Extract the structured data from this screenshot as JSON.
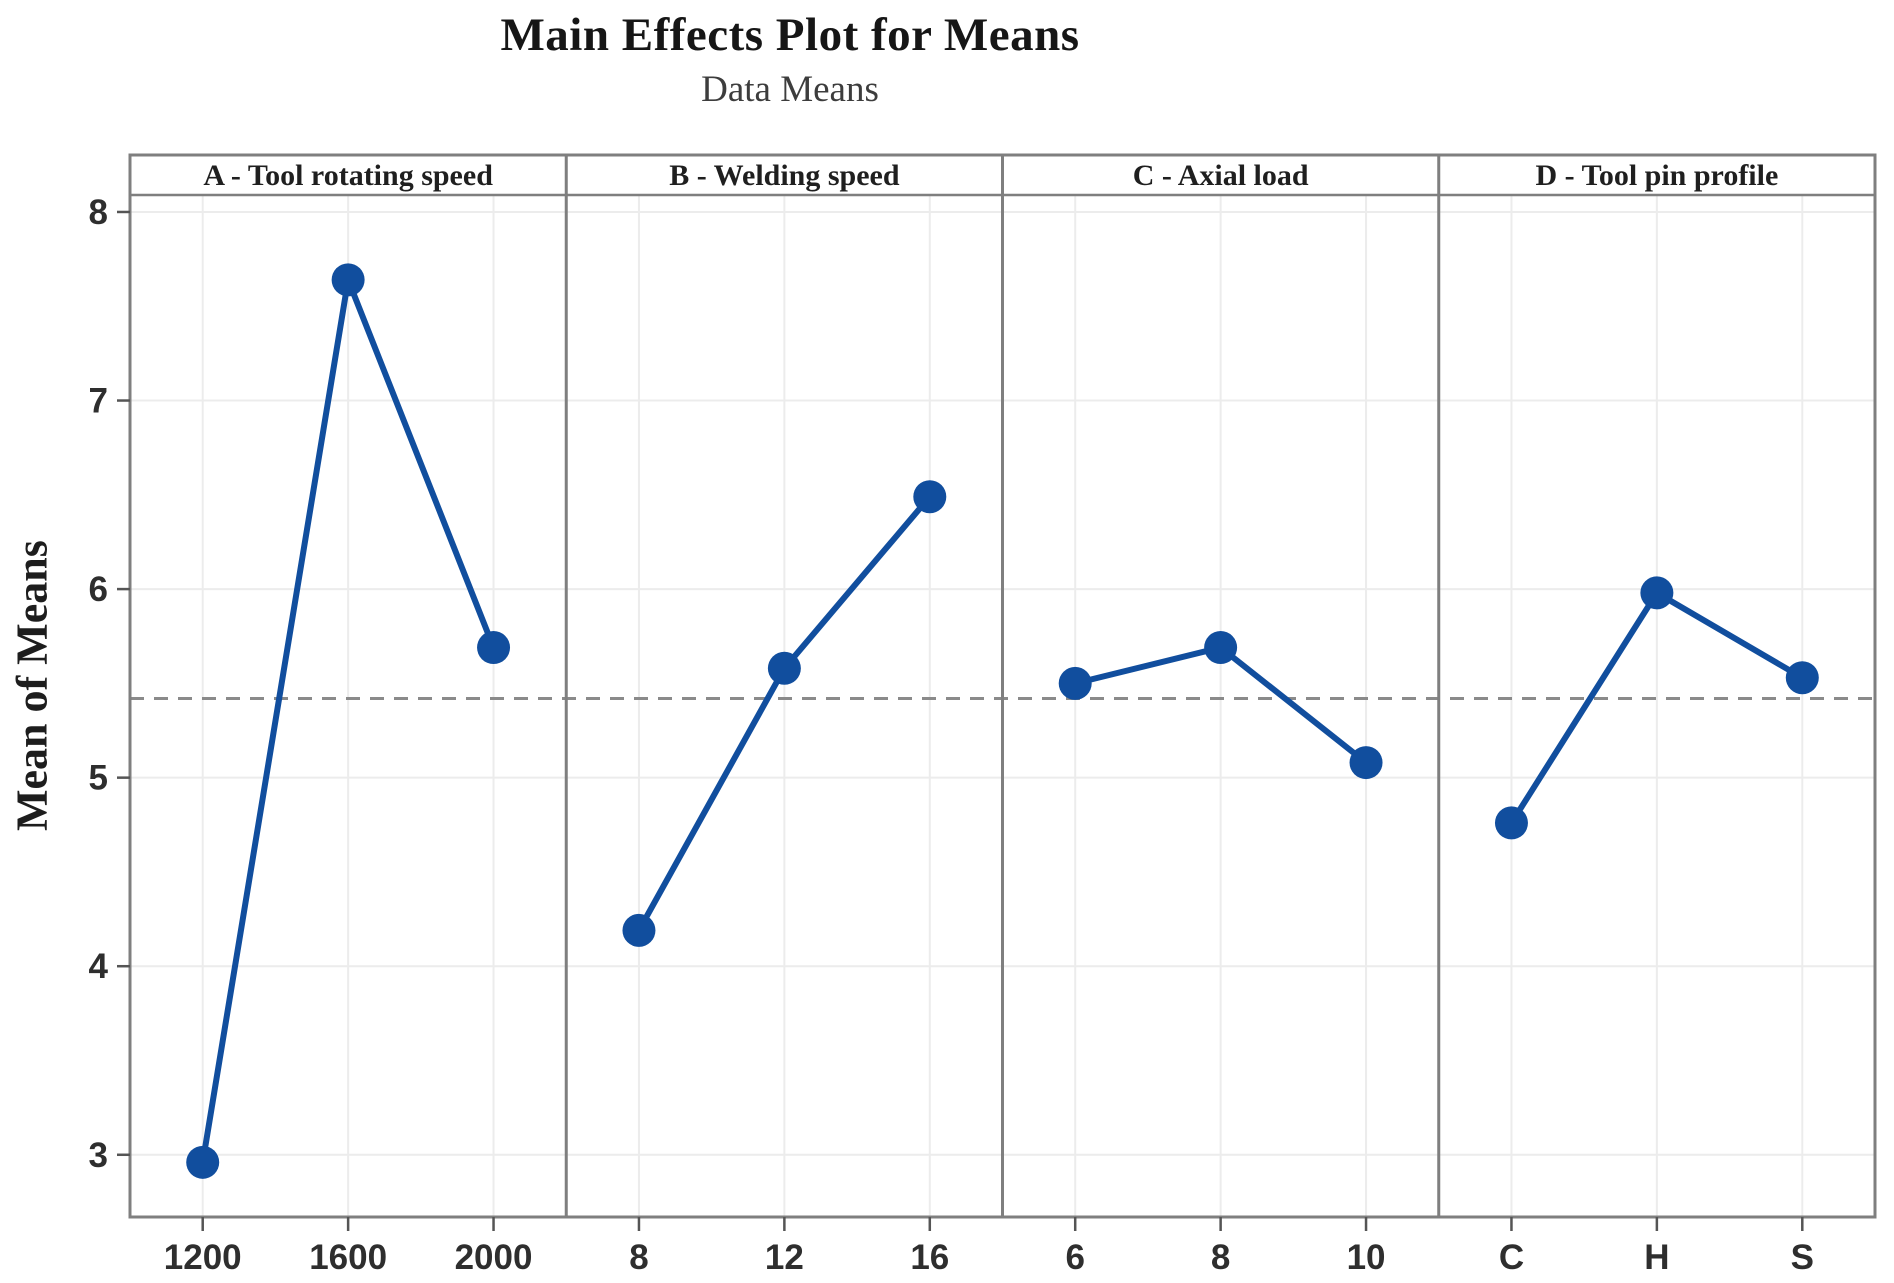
{
  "figure": {
    "title": "Main Effects Plot for Means",
    "subtitle": "Data Means",
    "y_axis_label": "Mean of Means"
  },
  "chart_data": {
    "type": "line",
    "title": "Main Effects Plot for Means",
    "subtitle": "Data Means",
    "ylabel": "Mean of Means",
    "ylim": [
      2.67,
      8.09
    ],
    "yticks": [
      3,
      4,
      5,
      6,
      7,
      8
    ],
    "grid": true,
    "legend": "none",
    "reference_line_value": 5.42,
    "panels": [
      {
        "label": "A - Tool rotating speed",
        "categories": [
          "1200",
          "1600",
          "2000"
        ],
        "values": [
          2.96,
          7.64,
          5.69
        ]
      },
      {
        "label": "B - Welding speed",
        "categories": [
          "8",
          "12",
          "16"
        ],
        "values": [
          4.19,
          5.58,
          6.49
        ]
      },
      {
        "label": "C - Axial load",
        "categories": [
          "6",
          "8",
          "10"
        ],
        "values": [
          5.5,
          5.69,
          5.08
        ]
      },
      {
        "label": "D - Tool pin profile",
        "categories": [
          "C",
          "H",
          "S"
        ],
        "values": [
          4.76,
          5.98,
          5.53
        ]
      }
    ],
    "colors": {
      "series": "#114E9E",
      "reference_line": "#8a8a8a",
      "grid": "#ececec",
      "border": "#7f7f7f",
      "header_text": "#1f1f1f",
      "tick_label": "#2e2e2e",
      "tick_mark": "#555555"
    }
  }
}
